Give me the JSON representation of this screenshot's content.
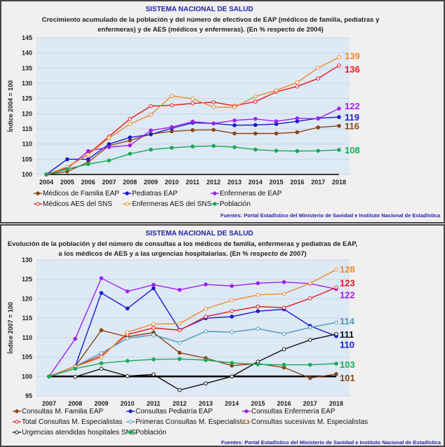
{
  "chart_data": [
    {
      "type": "line",
      "header": "SISTEMA NACIONAL DE SALUD",
      "title_lines": [
        "Crecimiento acumulado de la población y del número de efectivos de EAP (médicos de familia, pediatras y",
        "enfermeras) y de AES (médicos y enfermeras). (En % respecto de 2004)"
      ],
      "ylabel": "Índice 2004 = 100",
      "ylim": [
        100,
        145
      ],
      "yticks": [
        100,
        105,
        110,
        115,
        120,
        125,
        130,
        135,
        140,
        145
      ],
      "x": [
        "2004",
        "2005",
        "2006",
        "2007",
        "2008",
        "2009",
        "2010",
        "2011",
        "2012",
        "2013",
        "2014",
        "2015",
        "2016",
        "2017",
        "2018"
      ],
      "legend": "bottom",
      "source": "Fuentes:  Portal Estadístico del Ministerio de Sanidad e Instituto Nacional de Estadística",
      "series": [
        {
          "name": "Médicos de Familia EAP",
          "color": "#8b4513",
          "marker": "filled",
          "end_label": "116",
          "values": [
            100,
            101,
            104,
            109.5,
            111.2,
            113.3,
            114.2,
            114.6,
            114.7,
            113.5,
            113.5,
            113.5,
            113.9,
            115.5,
            116
          ]
        },
        {
          "name": "Pediatras EAP",
          "color": "#1a1acc",
          "marker": "filled",
          "end_label": "119",
          "values": [
            100,
            105,
            105,
            110,
            112.2,
            113.2,
            115.2,
            117,
            116.8,
            116.2,
            116.3,
            116.6,
            117.5,
            118.5,
            118.9
          ]
        },
        {
          "name": "Enfermeras de EAP",
          "color": "#a020f0",
          "marker": "filled",
          "end_label": "122",
          "values": [
            100,
            102,
            107.7,
            109,
            109.6,
            114.5,
            115.6,
            117.4,
            116.8,
            117.8,
            118.3,
            117.5,
            118.5,
            118.4,
            121.7
          ]
        },
        {
          "name": "Médicos AES del SNS",
          "color": "#e8161b",
          "marker": "open",
          "end_label": "136",
          "values": [
            100,
            102.3,
            106.7,
            112.5,
            118.3,
            122.5,
            122.8,
            123.4,
            123.8,
            122.6,
            124,
            127.2,
            129,
            131.6,
            135.9
          ]
        },
        {
          "name": "Enfermeras AES del SNS",
          "color": "#ee8a2a",
          "marker": "open",
          "end_label": "139",
          "values": [
            100,
            102.5,
            106.5,
            112,
            116.6,
            119.7,
            125.9,
            124.9,
            122.2,
            122.1,
            125.7,
            127.7,
            130.3,
            135.1,
            138.6
          ]
        },
        {
          "name": "Población",
          "color": "#1aaa55",
          "marker": "filled",
          "end_label": "108",
          "values": [
            100,
            101.8,
            103.4,
            104.6,
            106.8,
            108.2,
            108.8,
            109.2,
            109.4,
            109,
            108.2,
            107.8,
            107.7,
            107.8,
            108.1
          ]
        }
      ]
    },
    {
      "type": "line",
      "header": "SISTEMA NACIONAL DE SALUD",
      "title_lines": [
        "Evolución de la población y del número de consultas a los médicos de familia, enfermeras y pediatras de EAP,",
        "a los médicos de AES y a las urgencias hospitalarias. (En % respecto de 2007)"
      ],
      "ylabel": "Índice 2007 = 100",
      "ylim": [
        95,
        130
      ],
      "yticks": [
        95,
        100,
        105,
        110,
        115,
        120,
        125,
        130
      ],
      "x": [
        "2007",
        "2008",
        "2009",
        "2010",
        "2011",
        "2012",
        "2013",
        "2014",
        "2015",
        "2016",
        "2017",
        "2018"
      ],
      "legend": "bottom",
      "source": "Fuentes: Portal Estadístico del Ministerio de Sanidad e Instituto Nacional de Estadística",
      "series": [
        {
          "name": "Consultas M. Familia EAP",
          "color": "#8b4513",
          "marker": "filled",
          "end_label": "101",
          "values": [
            100,
            102.6,
            111.9,
            110.2,
            111.3,
            106.1,
            104.7,
            102.8,
            103.3,
            102.3,
            99.6,
            100.6
          ]
        },
        {
          "name": "Consultas Pediatría EAP",
          "color": "#1a1acc",
          "marker": "filled",
          "end_label": "110",
          "values": [
            100,
            102.6,
            121.5,
            117.5,
            122.7,
            112,
            115,
            115.4,
            116.8,
            117.3,
            113,
            110.4
          ]
        },
        {
          "name": "Consultas Enfermería EAP",
          "color": "#a020f0",
          "marker": "filled",
          "end_label": "122",
          "values": [
            100,
            109.7,
            125.3,
            121.9,
            123.6,
            122.3,
            123.7,
            123.3,
            124,
            124.3,
            123.9,
            122.5
          ]
        },
        {
          "name": "Total Consultas M. Especialistas",
          "color": "#e8161b",
          "marker": "open",
          "end_label": "123",
          "values": [
            100,
            102.6,
            105.3,
            110.8,
            112.5,
            111.9,
            115.4,
            116.8,
            118,
            117.7,
            120.1,
            122.9
          ]
        },
        {
          "name": "Primeras Consultas M. Especialistas",
          "color": "#4a9ab8",
          "marker": "open",
          "end_label": "114",
          "values": [
            100,
            102.6,
            106,
            109.8,
            110.7,
            108.7,
            111.6,
            111.4,
            112.3,
            111,
            112.6,
            113.9
          ]
        },
        {
          "name": "Consultas sucesivas M. Especialistas",
          "color": "#ee8a2a",
          "marker": "open",
          "end_label": "128",
          "values": [
            100,
            102.5,
            104.9,
            111.4,
            113.5,
            113.6,
            117.4,
            119.6,
            121,
            121.3,
            124,
            127.5
          ]
        },
        {
          "name": "Urgencias atendidas hospitales SNS",
          "color": "#111111",
          "marker": "open",
          "end_label": "111",
          "values": [
            100,
            99.9,
            102,
            100.1,
            100.5,
            96.5,
            98.2,
            100,
            103.8,
            107,
            109.4,
            110.9
          ]
        },
        {
          "name": "Población",
          "color": "#1aaa55",
          "marker": "filled",
          "end_label": "103",
          "values": [
            100,
            102,
            103.4,
            104,
            104.4,
            104.5,
            104.2,
            103.5,
            103.1,
            103,
            103,
            103.3
          ]
        }
      ]
    }
  ]
}
